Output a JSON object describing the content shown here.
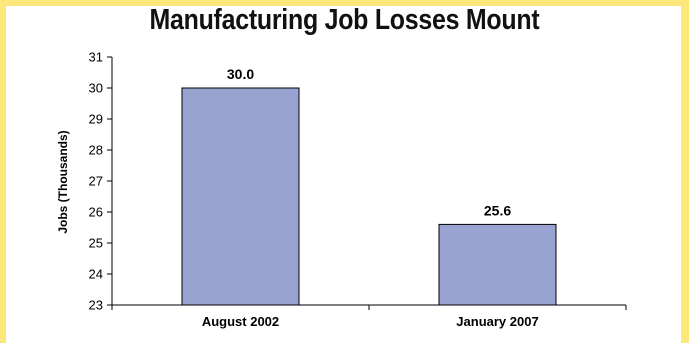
{
  "chart_data": {
    "type": "bar",
    "title": "Manufacturing Job Losses Mount",
    "xlabel": "",
    "ylabel": "Jobs (Thousands)",
    "categories": [
      "August 2002",
      "January 2007"
    ],
    "values": [
      30.0,
      25.6
    ],
    "data_labels": [
      "30.0",
      "25.6"
    ],
    "ylim": [
      23,
      31
    ],
    "yticks": [
      23,
      24,
      25,
      26,
      27,
      28,
      29,
      30,
      31
    ],
    "grid": false,
    "legend": "none",
    "bar_color": "#99a3d1",
    "bar_edge_color": "#000000",
    "background_border_color": "#fce77a"
  }
}
